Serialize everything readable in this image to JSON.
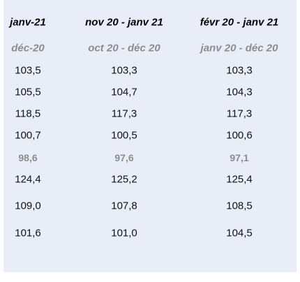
{
  "table": {
    "header": [
      "janv-21",
      "nov 20 - janv 21",
      "févr 20 - janv 21"
    ],
    "subheader": [
      "déc-20",
      "oct 20 - déc 20",
      "janv 20 - déc 20"
    ],
    "rows": [
      [
        "103,5",
        "103,3",
        "103,3"
      ],
      [
        "105,5",
        "104,7",
        "104,3"
      ],
      [
        "118,5",
        "117,3",
        "117,3"
      ],
      [
        "100,7",
        "100,5",
        "100,6"
      ],
      [
        "98,6",
        "97,6",
        "97,1"
      ],
      [
        "124,4",
        "125,2",
        "125,4"
      ],
      [
        "109,0",
        "107,8",
        "108,5"
      ],
      [
        "101,6",
        "101,0",
        "104,5"
      ]
    ]
  }
}
